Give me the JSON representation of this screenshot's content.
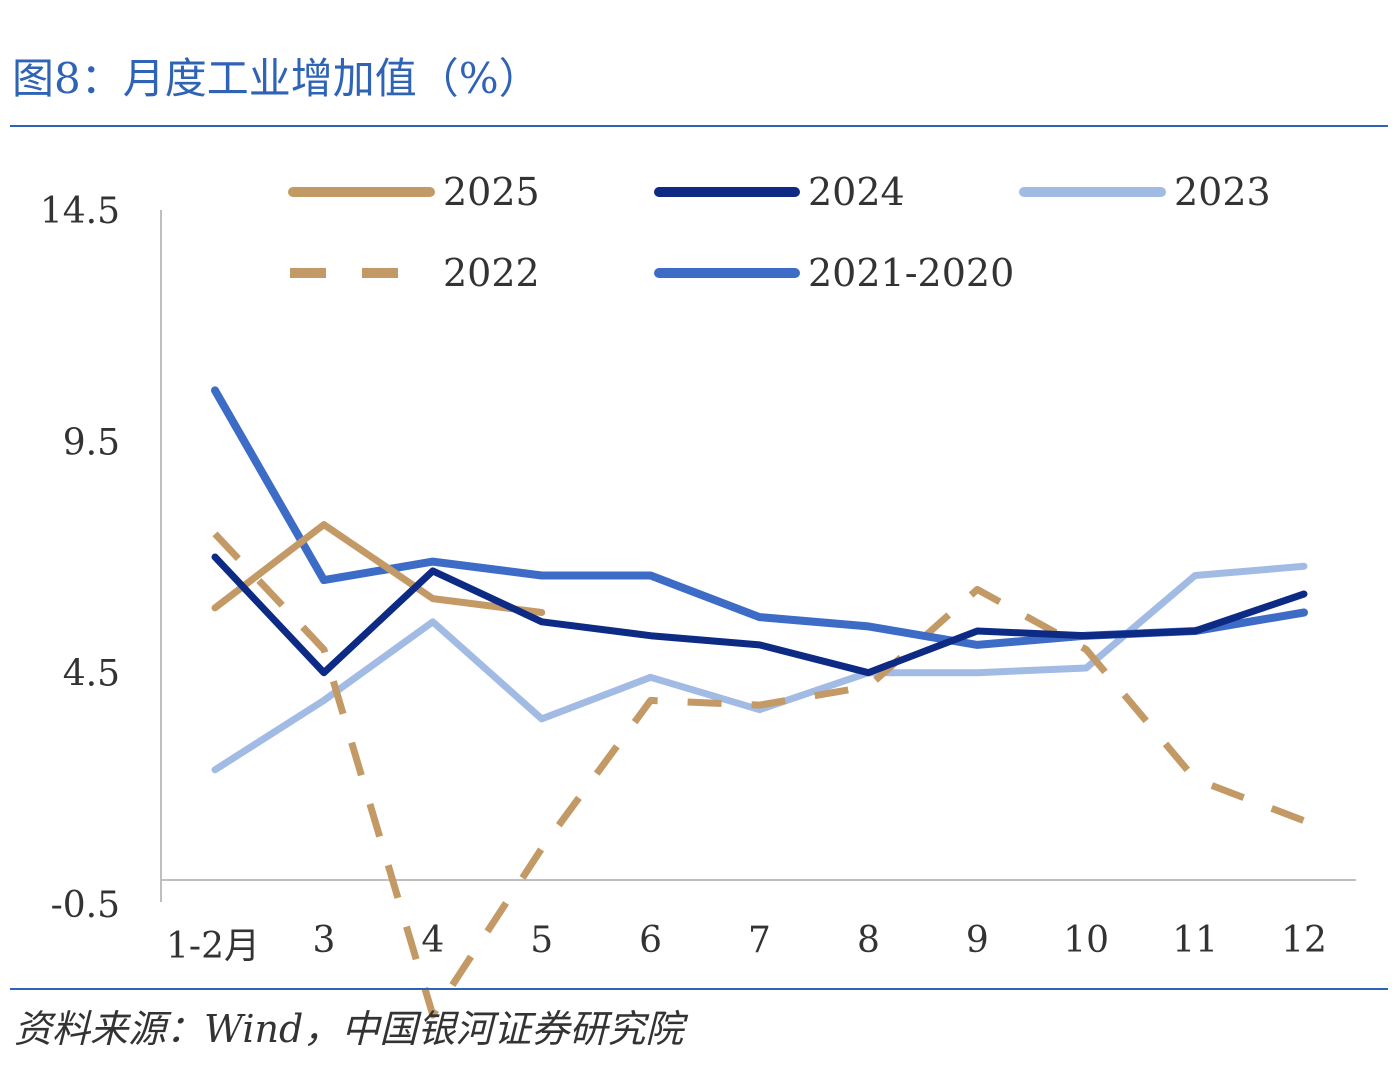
{
  "title": "图8：月度工业增加值（%）",
  "source": "资料来源：Wind，中国银河证券研究院",
  "chart_data": {
    "type": "line",
    "title": "图8：月度工业增加值（%）",
    "xlabel": "",
    "ylabel": "",
    "categories": [
      "1-2月",
      "3",
      "4",
      "5",
      "6",
      "7",
      "8",
      "9",
      "10",
      "11",
      "12"
    ],
    "yticks": [
      "14.5",
      "9.5",
      "4.5",
      "-0.5"
    ],
    "ylim": [
      -0.5,
      14.5
    ],
    "grid": false,
    "legend_position": "top",
    "series": [
      {
        "name": "2025",
        "color": "#c39a66",
        "style": "solid",
        "width": 7,
        "values": [
          5.9,
          7.7,
          6.1,
          5.8,
          null,
          null,
          null,
          null,
          null,
          null,
          null
        ]
      },
      {
        "name": "2024",
        "color": "#0d2b84",
        "style": "solid",
        "width": 7,
        "values": [
          7.0,
          4.5,
          6.7,
          5.6,
          5.3,
          5.1,
          4.5,
          5.4,
          5.3,
          5.4,
          6.2
        ]
      },
      {
        "name": "2023",
        "color": "#a2bbe4",
        "style": "solid",
        "width": 7,
        "values": [
          2.4,
          3.9,
          5.6,
          3.5,
          4.4,
          3.7,
          4.5,
          4.5,
          4.6,
          6.6,
          6.8
        ]
      },
      {
        "name": "2022",
        "color": "#c39a66",
        "style": "dashed",
        "width": 7,
        "values": [
          7.5,
          5.0,
          -2.9,
          0.7,
          3.9,
          3.8,
          4.2,
          6.3,
          5.0,
          2.2,
          1.3
        ]
      },
      {
        "name": "2021-2020",
        "color": "#3d6cc6",
        "style": "solid",
        "width": 8,
        "values": [
          10.6,
          6.5,
          6.9,
          6.6,
          6.6,
          5.7,
          5.5,
          5.1,
          5.3,
          5.4,
          5.8
        ]
      }
    ]
  }
}
